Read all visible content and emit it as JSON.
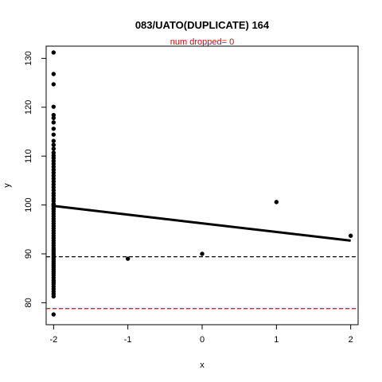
{
  "chart_data": {
    "type": "scatter",
    "title": "083/UATO(DUPLICATE) 164",
    "subtitle": "num dropped= 0",
    "xlabel": "x",
    "ylabel": "y",
    "xlim": [
      -2.1,
      2.1
    ],
    "ylim": [
      75.5,
      132.5
    ],
    "x_ticks": [
      -2,
      -1,
      0,
      1,
      2
    ],
    "y_ticks": [
      80,
      90,
      100,
      110,
      120,
      130
    ],
    "x_tick_labels": [
      "-2",
      "-1",
      "0",
      "1",
      "2"
    ],
    "y_tick_labels": [
      "80",
      "90",
      "100",
      "110",
      "120",
      "130"
    ],
    "grid": false,
    "points": {
      "x": [
        -2,
        -2,
        -2,
        -2,
        -2,
        -2,
        -2,
        -2,
        -2,
        -2,
        -2,
        -2,
        -2,
        -2,
        -2,
        -2,
        -2,
        -2,
        -2,
        -2,
        -2,
        -2,
        -2,
        -2,
        -2,
        -2,
        -2,
        -2,
        -2,
        -2,
        -2,
        -2,
        -2,
        -2,
        -2,
        -2,
        -2,
        -2,
        -2,
        -2,
        -2,
        -2,
        -2,
        -2,
        -2,
        -2,
        -2,
        -2,
        -2,
        -2,
        -2,
        -2,
        -2,
        -2,
        -2,
        -2,
        -2,
        -2,
        -2,
        -2,
        -2,
        -2,
        -2,
        -2,
        -2,
        -2,
        -2,
        -2,
        -2,
        -2,
        -2,
        -2,
        -2,
        -2,
        -2,
        -1,
        0,
        1,
        2
      ],
      "y": [
        131.2,
        126.8,
        124.7,
        120.1,
        118.4,
        117.8,
        116.9,
        115.6,
        114.4,
        113.1,
        112.3,
        111.5,
        110.7,
        110.1,
        109.6,
        109.0,
        108.4,
        107.8,
        107.2,
        106.6,
        106.0,
        105.4,
        104.8,
        104.2,
        103.6,
        103.0,
        102.4,
        101.9,
        101.3,
        100.8,
        100.2,
        99.7,
        99.2,
        98.7,
        98.2,
        97.7,
        97.2,
        96.7,
        96.2,
        95.7,
        95.2,
        94.7,
        94.2,
        93.7,
        93.2,
        92.7,
        92.2,
        91.7,
        91.2,
        90.8,
        90.4,
        90.0,
        89.6,
        89.2,
        88.8,
        88.4,
        88.0,
        87.6,
        87.2,
        86.8,
        86.4,
        86.0,
        85.6,
        85.1,
        84.6,
        84.2,
        83.8,
        83.3,
        82.8,
        82.3,
        81.8,
        81.3,
        77.6,
        100.0,
        99.2,
        89.0,
        90.0,
        100.6,
        93.7
      ]
    },
    "regression_line": {
      "x": [
        -2,
        2
      ],
      "y": [
        99.8,
        92.7
      ],
      "color": "#000000"
    },
    "hlines": [
      {
        "y": 89.4,
        "style": "dashed",
        "color": "#000000"
      },
      {
        "y": 78.8,
        "style": "dashed",
        "color": "#e00000"
      }
    ]
  }
}
